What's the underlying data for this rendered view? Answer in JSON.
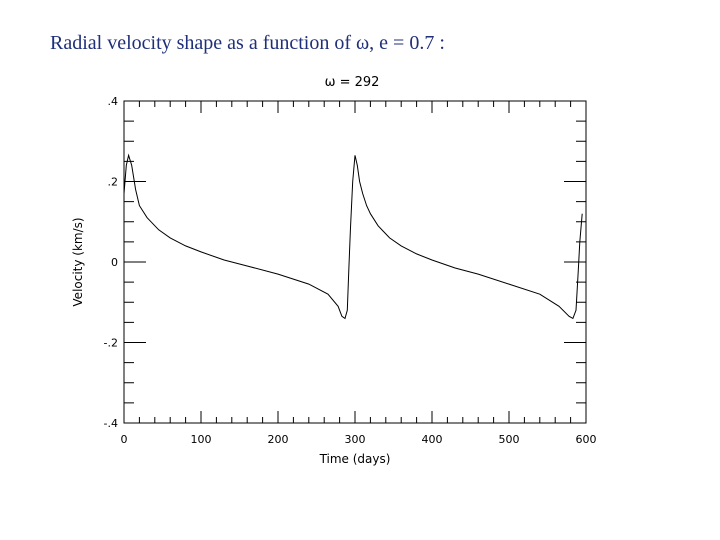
{
  "slide": {
    "title": "Radial velocity shape as a function of ω, e = 0.7 :"
  },
  "chart_data": {
    "type": "line",
    "title": "ω = 292",
    "xlabel": "Time (days)",
    "ylabel": "Velocity (km/s)",
    "xlim": [
      0,
      600
    ],
    "ylim": [
      -0.4,
      0.4
    ],
    "xticks": [
      0,
      100,
      200,
      300,
      400,
      500,
      600
    ],
    "xtick_labels": [
      "0",
      "100",
      "200",
      "300",
      "400",
      "500",
      "600"
    ],
    "yticks": [
      -0.4,
      -0.2,
      0,
      0.2,
      0.4
    ],
    "ytick_labels": [
      "-.4",
      "-.2",
      "0",
      ".2",
      ".4"
    ],
    "grid": false,
    "line_color": "#000000",
    "series": [
      {
        "x": [
          0,
          3,
          6,
          10,
          15,
          20,
          30,
          45,
          60,
          80,
          100,
          130,
          160,
          200,
          240,
          265,
          278,
          283,
          287,
          290,
          292,
          294,
          297,
          300,
          303,
          306,
          310,
          315,
          320,
          330,
          345,
          360,
          380,
          400,
          430,
          460,
          500,
          540,
          565,
          578,
          583,
          587,
          590,
          592,
          595
        ],
        "y": [
          0.17,
          0.24,
          0.265,
          0.24,
          0.18,
          0.14,
          0.11,
          0.08,
          0.06,
          0.04,
          0.025,
          0.005,
          -0.01,
          -0.03,
          -0.055,
          -0.08,
          -0.11,
          -0.135,
          -0.14,
          -0.12,
          -0.02,
          0.08,
          0.2,
          0.265,
          0.24,
          0.2,
          0.17,
          0.14,
          0.12,
          0.09,
          0.06,
          0.04,
          0.02,
          0.005,
          -0.015,
          -0.03,
          -0.055,
          -0.08,
          -0.11,
          -0.135,
          -0.14,
          -0.12,
          -0.02,
          0.05,
          0.12
        ]
      }
    ]
  }
}
